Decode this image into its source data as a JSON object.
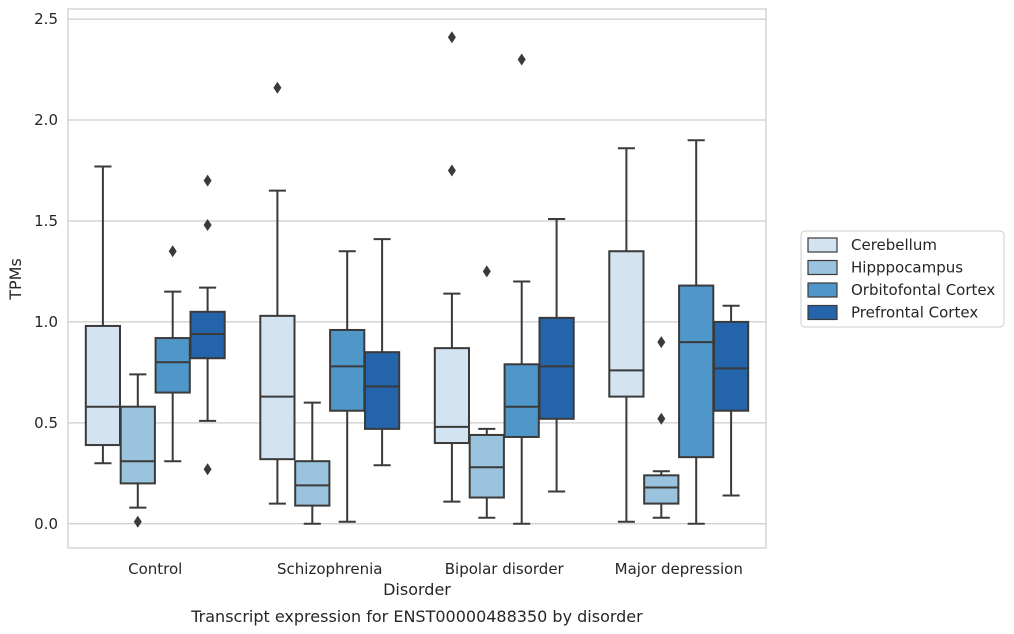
{
  "chart_data": {
    "type": "box",
    "title": "",
    "caption": "Transcript expression for ENST00000488350 by disorder",
    "xlabel": "Disorder",
    "ylabel": "TPMs",
    "ylim": [
      -0.12,
      2.55
    ],
    "yticks": [
      "0.0",
      "0.5",
      "1.0",
      "1.5",
      "2.0",
      "2.5"
    ],
    "grid": "horizontal",
    "legend_placement": "right, outside plot",
    "categories": [
      "Control",
      "Schizophrenia",
      "Bipolar disorder",
      "Major depression"
    ],
    "series": [
      {
        "name": "Cerebellum",
        "color": "#d4e3f2",
        "boxes": [
          {
            "whislo": 0.3,
            "q1": 0.39,
            "med": 0.58,
            "q3": 0.98,
            "whishi": 1.77,
            "fliers": []
          },
          {
            "whislo": 0.1,
            "q1": 0.32,
            "med": 0.63,
            "q3": 1.03,
            "whishi": 1.65,
            "fliers": [
              2.16
            ]
          },
          {
            "whislo": 0.11,
            "q1": 0.4,
            "med": 0.48,
            "q3": 0.87,
            "whishi": 1.14,
            "fliers": [
              1.75,
              2.41
            ]
          },
          {
            "whislo": 0.01,
            "q1": 0.63,
            "med": 0.76,
            "q3": 1.35,
            "whishi": 1.86,
            "fliers": []
          }
        ]
      },
      {
        "name": "Hipppocampus",
        "color": "#9ac3de",
        "boxes": [
          {
            "whislo": 0.08,
            "q1": 0.2,
            "med": 0.31,
            "q3": 0.58,
            "whishi": 0.74,
            "fliers": [
              0.01
            ]
          },
          {
            "whislo": 0.0,
            "q1": 0.09,
            "med": 0.19,
            "q3": 0.31,
            "whishi": 0.6,
            "fliers": []
          },
          {
            "whislo": 0.03,
            "q1": 0.13,
            "med": 0.28,
            "q3": 0.44,
            "whishi": 0.47,
            "fliers": [
              1.25
            ]
          },
          {
            "whislo": 0.03,
            "q1": 0.1,
            "med": 0.18,
            "q3": 0.24,
            "whishi": 0.26,
            "fliers": [
              0.52,
              0.9
            ]
          }
        ]
      },
      {
        "name": "Orbitofontal Cortex",
        "color": "#5097c9",
        "boxes": [
          {
            "whislo": 0.31,
            "q1": 0.65,
            "med": 0.8,
            "q3": 0.92,
            "whishi": 1.15,
            "fliers": [
              1.35
            ]
          },
          {
            "whislo": 0.01,
            "q1": 0.56,
            "med": 0.78,
            "q3": 0.96,
            "whishi": 1.35,
            "fliers": []
          },
          {
            "whislo": 0.0,
            "q1": 0.43,
            "med": 0.58,
            "q3": 0.79,
            "whishi": 1.2,
            "fliers": [
              2.3
            ]
          },
          {
            "whislo": 0.0,
            "q1": 0.33,
            "med": 0.9,
            "q3": 1.18,
            "whishi": 1.9,
            "fliers": []
          }
        ]
      },
      {
        "name": "Prefrontal Cortex",
        "color": "#2464ab",
        "boxes": [
          {
            "whislo": 0.51,
            "q1": 0.82,
            "med": 0.94,
            "q3": 1.05,
            "whishi": 1.17,
            "fliers": [
              0.27,
              1.48,
              1.7
            ]
          },
          {
            "whislo": 0.29,
            "q1": 0.47,
            "med": 0.68,
            "q3": 0.85,
            "whishi": 1.41,
            "fliers": []
          },
          {
            "whislo": 0.16,
            "q1": 0.52,
            "med": 0.78,
            "q3": 1.02,
            "whishi": 1.51,
            "fliers": []
          },
          {
            "whislo": 0.14,
            "q1": 0.56,
            "med": 0.77,
            "q3": 1.0,
            "whishi": 1.08,
            "fliers": []
          }
        ]
      }
    ]
  }
}
